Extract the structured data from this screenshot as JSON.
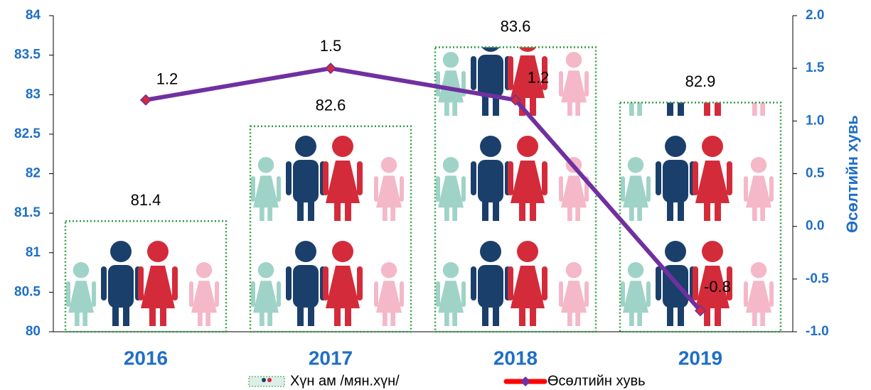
{
  "chart_data": {
    "type": "bar",
    "categories": [
      "2016",
      "2017",
      "2018",
      "2019"
    ],
    "series": [
      {
        "name": "Хүн ам /мян.хүн/",
        "type": "bar",
        "color": "#2e9e44",
        "values": [
          81.4,
          82.6,
          83.6,
          82.9
        ]
      },
      {
        "name": "Өсөлтийн хувь",
        "type": "line",
        "axis": "y2",
        "color": "#7030a0",
        "values": [
          1.2,
          1.5,
          1.2,
          -0.8
        ]
      }
    ],
    "ylim": [
      80,
      84
    ],
    "yticks": [
      80,
      80.5,
      81,
      81.5,
      82,
      82.5,
      83,
      83.5,
      84
    ],
    "y2lim": [
      -1,
      2
    ],
    "y2ticks": [
      {
        "value": -1,
        "label": "-1.0"
      },
      -0.5,
      {
        "value": 0,
        "label": "0.0"
      },
      0.5,
      {
        "value": 1,
        "label": "1.0"
      },
      1.5,
      {
        "value": 2,
        "label": "2.0"
      }
    ],
    "y2label": "Өсөлтийн хувь"
  }
}
